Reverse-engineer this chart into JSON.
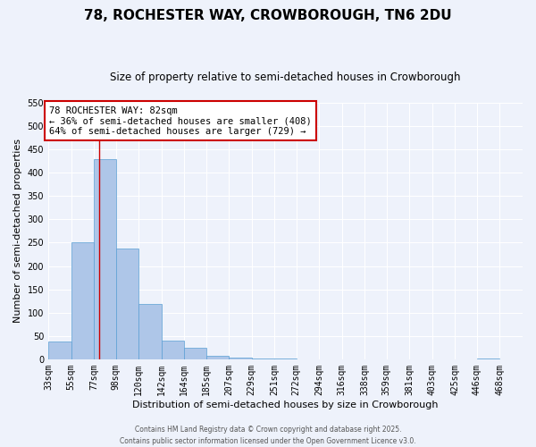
{
  "title": "78, ROCHESTER WAY, CROWBOROUGH, TN6 2DU",
  "subtitle": "Size of property relative to semi-detached houses in Crowborough",
  "xlabel": "Distribution of semi-detached houses by size in Crowborough",
  "ylabel": "Number of semi-detached properties",
  "bin_edges": [
    33,
    55,
    77,
    98,
    120,
    142,
    164,
    185,
    207,
    229,
    251,
    272,
    294,
    316,
    338,
    359,
    381,
    403,
    425,
    446,
    468
  ],
  "bar_heights": [
    38,
    250,
    430,
    237,
    118,
    40,
    24,
    8,
    4,
    1,
    1,
    0,
    0,
    0,
    0,
    0,
    0,
    0,
    0,
    1
  ],
  "bar_color": "#aec6e8",
  "bar_edgecolor": "#5a9fd4",
  "background_color": "#eef2fb",
  "grid_color": "#ffffff",
  "property_size": 82,
  "red_line_color": "#cc0000",
  "annotation_title": "78 ROCHESTER WAY: 82sqm",
  "annotation_line1": "← 36% of semi-detached houses are smaller (408)",
  "annotation_line2": "64% of semi-detached houses are larger (729) →",
  "annotation_box_color": "#ffffff",
  "annotation_border_color": "#cc0000",
  "ylim": [
    0,
    550
  ],
  "yticks": [
    0,
    50,
    100,
    150,
    200,
    250,
    300,
    350,
    400,
    450,
    500,
    550
  ],
  "footer1": "Contains HM Land Registry data © Crown copyright and database right 2025.",
  "footer2": "Contains public sector information licensed under the Open Government Licence v3.0.",
  "title_fontsize": 11,
  "subtitle_fontsize": 8.5,
  "axis_label_fontsize": 8,
  "tick_fontsize": 7,
  "annotation_fontsize": 7.5,
  "footer_fontsize": 5.5
}
